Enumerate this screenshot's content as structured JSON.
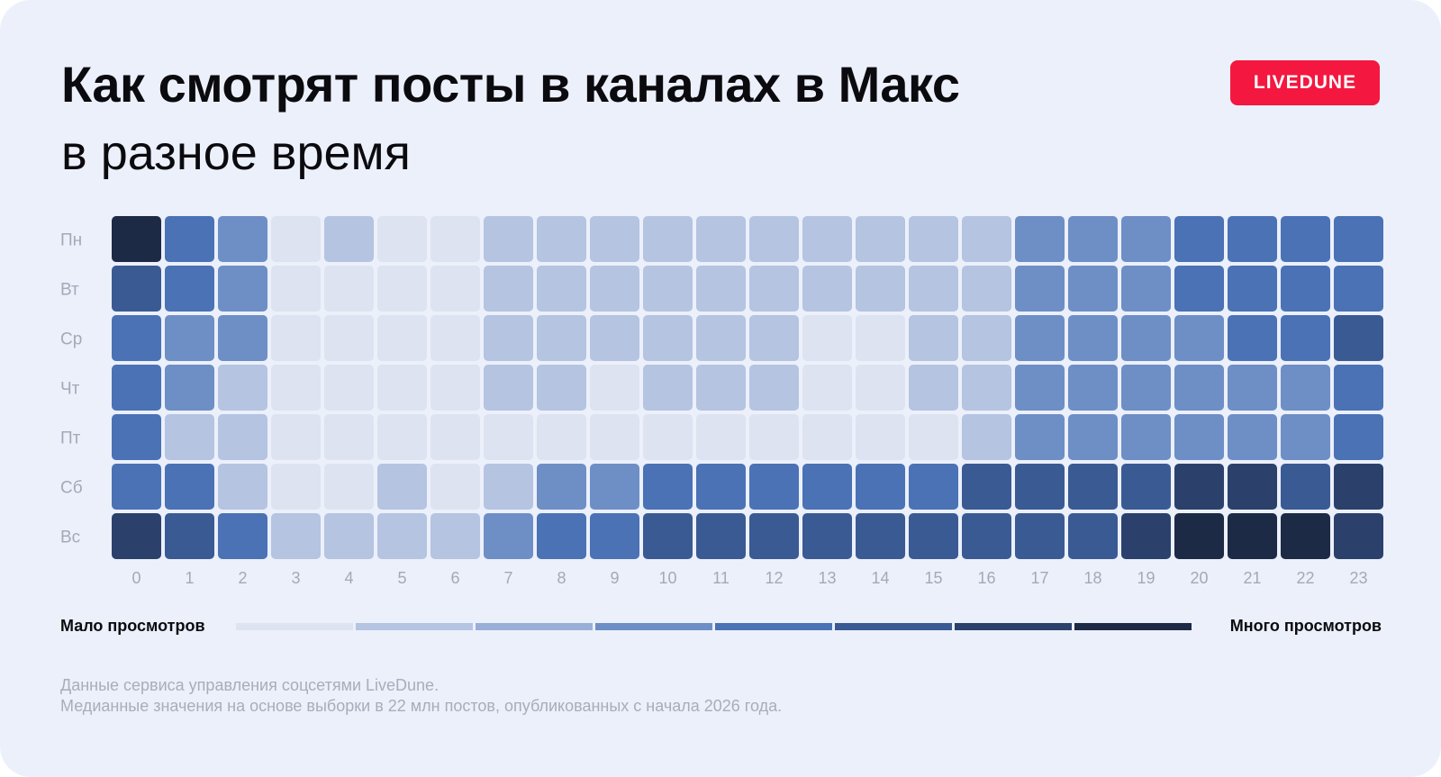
{
  "header": {
    "title": "Как смотрят посты в каналах в Макс",
    "subtitle": "в разное время",
    "brand": "LIVEDUNE"
  },
  "legend": {
    "low_label": "Мало просмотров",
    "high_label": "Много просмотров",
    "colors": [
      "#dde3f0",
      "#b4c4e1",
      "#9aafd7",
      "#6e8ec6",
      "#4a72b5",
      "#3a5a94",
      "#2b416c",
      "#1d2a46"
    ]
  },
  "footnote": {
    "line1": "Данные сервиса управления соцсетями LiveDune.",
    "line2": "Медианные значения на основе выборки в 22 млн постов, опубликованных с начала 2026 года."
  },
  "chart_data": {
    "type": "heatmap",
    "x": [
      "0",
      "1",
      "2",
      "3",
      "4",
      "5",
      "6",
      "7",
      "8",
      "9",
      "10",
      "11",
      "12",
      "13",
      "14",
      "15",
      "16",
      "17",
      "18",
      "19",
      "20",
      "21",
      "22",
      "23"
    ],
    "y": [
      "Пн",
      "Вт",
      "Ср",
      "Чт",
      "Пт",
      "Сб",
      "Вс"
    ],
    "scale_levels": 8,
    "values": [
      [
        8,
        5,
        4,
        1,
        2,
        1,
        1,
        2,
        2,
        2,
        2,
        2,
        2,
        2,
        2,
        2,
        2,
        4,
        4,
        4,
        5,
        5,
        5,
        5
      ],
      [
        6,
        5,
        4,
        1,
        1,
        1,
        1,
        2,
        2,
        2,
        2,
        2,
        2,
        2,
        2,
        2,
        2,
        4,
        4,
        4,
        5,
        5,
        5,
        5
      ],
      [
        5,
        4,
        4,
        1,
        1,
        1,
        1,
        2,
        2,
        2,
        2,
        2,
        2,
        1,
        1,
        2,
        2,
        4,
        4,
        4,
        4,
        5,
        5,
        6
      ],
      [
        5,
        4,
        2,
        1,
        1,
        1,
        1,
        2,
        2,
        1,
        2,
        2,
        2,
        1,
        1,
        2,
        2,
        4,
        4,
        4,
        4,
        4,
        4,
        5
      ],
      [
        5,
        2,
        2,
        1,
        1,
        1,
        1,
        1,
        1,
        1,
        1,
        1,
        1,
        1,
        1,
        1,
        2,
        4,
        4,
        4,
        4,
        4,
        4,
        5
      ],
      [
        5,
        5,
        2,
        1,
        1,
        2,
        1,
        2,
        4,
        4,
        5,
        5,
        5,
        5,
        5,
        5,
        6,
        6,
        6,
        6,
        7,
        7,
        6,
        7
      ],
      [
        7,
        6,
        5,
        2,
        2,
        2,
        2,
        4,
        5,
        5,
        6,
        6,
        6,
        6,
        6,
        6,
        6,
        6,
        6,
        7,
        8,
        8,
        8,
        7
      ]
    ],
    "colors": [
      "#dde3f0",
      "#b4c4e1",
      "#9aafd7",
      "#6e8ec6",
      "#4a72b5",
      "#3a5a94",
      "#2b416c",
      "#1d2a46"
    ],
    "xlabel": "",
    "ylabel": ""
  }
}
